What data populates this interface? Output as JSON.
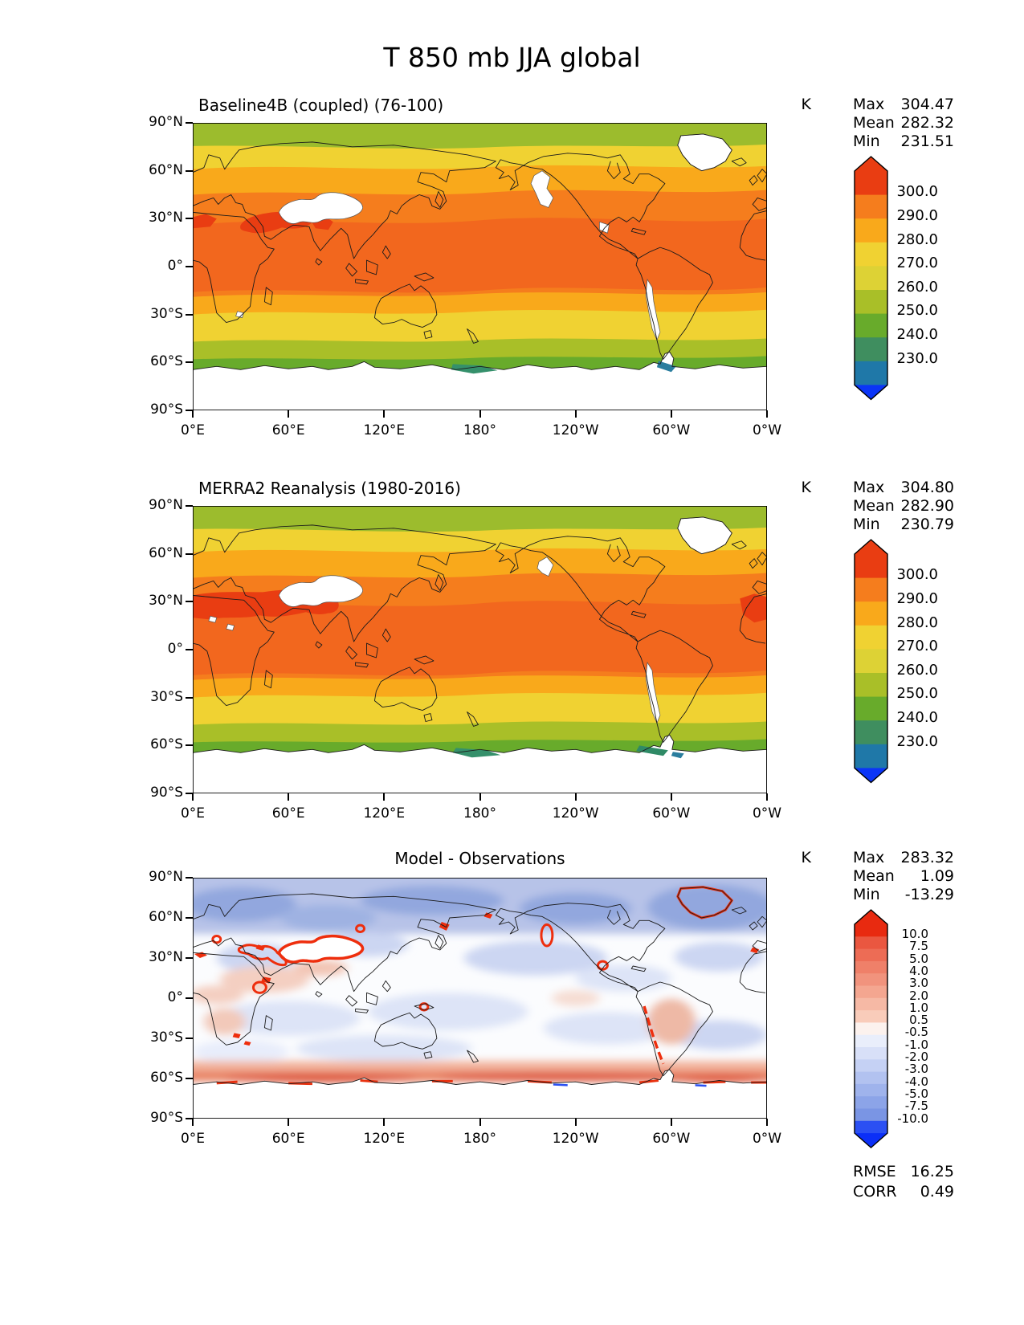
{
  "title": "T 850 mb JJA global",
  "axes": {
    "x_tick_labels": [
      "0°E",
      "60°E",
      "120°E",
      "180°",
      "120°W",
      "60°W",
      "0°W"
    ],
    "y_tick_labels": [
      "90°N",
      "60°N",
      "30°N",
      "0°",
      "30°S",
      "60°S",
      "90°S"
    ]
  },
  "panels": [
    {
      "name": "model",
      "title": "Baseline4B (coupled) (76-100)",
      "title_align": "left",
      "units": "K",
      "stats": [
        [
          "Max",
          "304.47"
        ],
        [
          "Mean",
          "282.32"
        ],
        [
          "Min",
          "231.51"
        ]
      ],
      "colorbar": {
        "tick_labels": [
          "300.0",
          "290.0",
          "280.0",
          "270.0",
          "260.0",
          "250.0",
          "240.0",
          "230.0"
        ],
        "segment_colors": [
          "#e93d12",
          "#f57d1d",
          "#f9a91b",
          "#f0d232",
          "#ddd235",
          "#a9bf28",
          "#68ab2b",
          "#3f8e5f",
          "#1f78a8"
        ],
        "over_color": "#e93d12",
        "under_color": "#0b35f7"
      }
    },
    {
      "name": "obs",
      "title": "MERRA2 Reanalysis (1980-2016)",
      "title_align": "left",
      "units": "K",
      "stats": [
        [
          "Max",
          "304.80"
        ],
        [
          "Mean",
          "282.90"
        ],
        [
          "Min",
          "230.79"
        ]
      ],
      "colorbar": {
        "tick_labels": [
          "300.0",
          "290.0",
          "280.0",
          "270.0",
          "260.0",
          "250.0",
          "240.0",
          "230.0"
        ],
        "segment_colors": [
          "#e93d12",
          "#f57d1d",
          "#f9a91b",
          "#f0d232",
          "#ddd235",
          "#a9bf28",
          "#68ab2b",
          "#3f8e5f",
          "#1f78a8"
        ],
        "over_color": "#e93d12",
        "under_color": "#0b35f7"
      }
    },
    {
      "name": "diff",
      "title": "Model - Observations",
      "title_align": "center",
      "units": "K",
      "stats": [
        [
          "Max",
          "283.32"
        ],
        [
          "Mean",
          "1.09"
        ],
        [
          "Min",
          "-13.29"
        ]
      ],
      "colorbar": {
        "tick_labels": [
          "10.0",
          "7.5",
          "5.0",
          "4.0",
          "3.0",
          "2.0",
          "1.0",
          "0.5",
          "-0.5",
          "-1.0",
          "-2.0",
          "-3.0",
          "-4.0",
          "-5.0",
          "-7.5",
          "-10.0"
        ],
        "segment_colors": [
          "#e82a10",
          "#ea5740",
          "#ed6c55",
          "#ef8069",
          "#f1937d",
          "#f4a690",
          "#f6b9a5",
          "#f9ccba",
          "#fcf2ee",
          "#e9eefb",
          "#d8e0f8",
          "#c5d1f4",
          "#b2c2f0",
          "#9fb3ec",
          "#8ca4e8",
          "#7a95e4",
          "#2b50f3"
        ],
        "over_color": "#e82a10",
        "under_color": "#0b2ff7"
      },
      "extra_stats": [
        [
          "RMSE",
          "16.25"
        ],
        [
          "CORR",
          "0.49"
        ]
      ]
    }
  ],
  "chart_data": [
    {
      "type": "heatmap",
      "title": "Baseline4B (coupled) (76-100)",
      "variable": "T",
      "level": "850 mb",
      "season": "JJA",
      "region": "global",
      "units": "K",
      "projection": "lat-lon, longitude 0°E to 0°W (0-360)",
      "x": {
        "label": "longitude",
        "range": [
          0,
          360
        ],
        "ticks": [
          "0°E",
          "60°E",
          "120°E",
          "180°",
          "120°W",
          "60°W",
          "0°W"
        ]
      },
      "y": {
        "label": "latitude",
        "range": [
          -90,
          90
        ],
        "ticks": [
          "90°N",
          "60°N",
          "30°N",
          "0°",
          "30°S",
          "60°S",
          "90°S"
        ]
      },
      "contour_levels": [
        230,
        240,
        250,
        260,
        270,
        280,
        290,
        300
      ],
      "stats": {
        "max": 304.47,
        "mean": 282.32,
        "min": 231.51
      },
      "zonal_mean_estimate_K": {
        "90N": 266,
        "60N": 279,
        "30N": 294,
        "0": 295,
        "30S": 281,
        "60S": 258,
        "90S": null
      },
      "notes": "Masked (white) over high terrain: Tibet/Iran, Rockies, Andes, Greenland, Antarctica"
    },
    {
      "type": "heatmap",
      "title": "MERRA2 Reanalysis (1980-2016)",
      "variable": "T",
      "level": "850 mb",
      "season": "JJA",
      "region": "global",
      "units": "K",
      "projection": "lat-lon, longitude 0°E to 0°W (0-360)",
      "x": {
        "label": "longitude",
        "range": [
          0,
          360
        ],
        "ticks": [
          "0°E",
          "60°E",
          "120°E",
          "180°",
          "120°W",
          "60°W",
          "0°W"
        ]
      },
      "y": {
        "label": "latitude",
        "range": [
          -90,
          90
        ],
        "ticks": [
          "90°N",
          "60°N",
          "30°N",
          "0°",
          "30°S",
          "60°S",
          "90°S"
        ]
      },
      "contour_levels": [
        230,
        240,
        250,
        260,
        270,
        280,
        290,
        300
      ],
      "stats": {
        "max": 304.8,
        "mean": 282.9,
        "min": 230.79
      },
      "zonal_mean_estimate_K": {
        "90N": 267,
        "60N": 280,
        "30N": 295,
        "0": 295,
        "30S": 281,
        "60S": 258,
        "90S": null
      },
      "notes": "Hot (>300K) band over Sahara-Arabia-Iran-NW India; masked white over high terrain"
    },
    {
      "type": "heatmap",
      "title": "Model - Observations",
      "variable": "T difference",
      "level": "850 mb",
      "season": "JJA",
      "region": "global",
      "units": "K",
      "x": {
        "label": "longitude",
        "range": [
          0,
          360
        ],
        "ticks": [
          "0°E",
          "60°E",
          "120°E",
          "180°",
          "120°W",
          "60°W",
          "0°W"
        ]
      },
      "y": {
        "label": "latitude",
        "range": [
          -90,
          90
        ],
        "ticks": [
          "90°N",
          "60°N",
          "30°N",
          "0°",
          "30°S",
          "60°S",
          "90°S"
        ]
      },
      "contour_levels": [
        -10,
        -7.5,
        -5,
        -4,
        -3,
        -2,
        -1,
        -0.5,
        0.5,
        1,
        2,
        3,
        4,
        5,
        7.5,
        10
      ],
      "stats": {
        "max": 283.32,
        "mean": 1.09,
        "min": -13.29,
        "rmse": 16.25,
        "corr": 0.49
      },
      "pattern": "Cold bias (blue, -1 to -4 K) across NH mid/high latitudes; near zero in tropics; warm bias band (+2 to +10 K) along 55-65S near Antarctic coast; strong warm spots (>10 K, red) ringing masked terrain (Tibet, Iran/Turkey, Rockies, Andes, Greenland, Ethiopia)"
    }
  ]
}
